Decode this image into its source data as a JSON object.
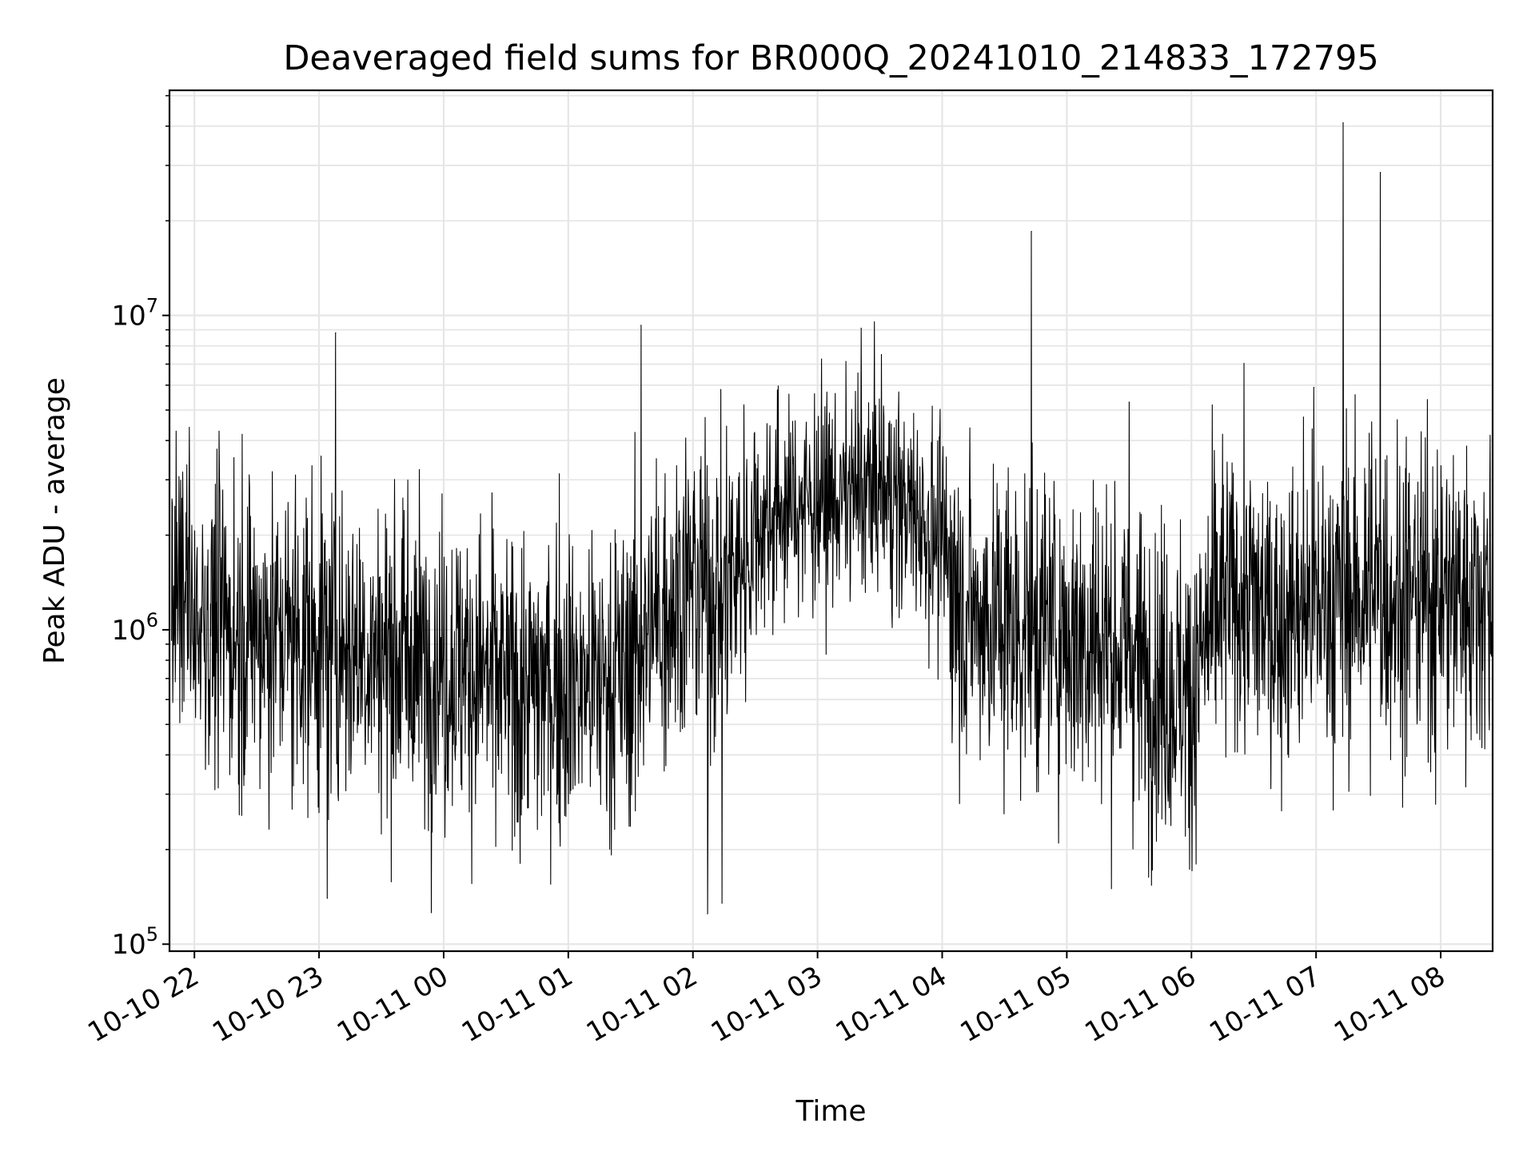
{
  "chart_data": {
    "type": "line",
    "title": "Deaveraged field sums for BR000Q_20241010_214833_172795",
    "xlabel": "Time",
    "ylabel": "Peak ADU - average",
    "x_ticks": [
      "10-10 22",
      "10-10 23",
      "10-11 00",
      "10-11 01",
      "10-11 02",
      "10-11 03",
      "10-11 04",
      "10-11 05",
      "10-11 06",
      "10-11 07",
      "10-11 08"
    ],
    "y_ticks": [
      {
        "base": "10",
        "exp": "5",
        "value": 100000
      },
      {
        "base": "10",
        "exp": "6",
        "value": 1000000
      },
      {
        "base": "10",
        "exp": "7",
        "value": 10000000
      }
    ],
    "xlim": [
      "2024-10-10 21:48",
      "2024-10-11 08:25"
    ],
    "ylim": [
      95000,
      52000000
    ],
    "yscale": "log",
    "grid": true,
    "line_color": "#000000",
    "grid_color": "#e6e6e6",
    "series": [
      {
        "values": [
          [
            "2024-10-10 21:50",
            1300000
          ],
          [
            "2024-10-10 22:00",
            1150000
          ],
          [
            "2024-10-10 22:10",
            1050000
          ],
          [
            "2024-10-10 22:20",
            1000000
          ],
          [
            "2024-10-10 22:30",
            1000000
          ],
          [
            "2024-10-10 22:40",
            980000
          ],
          [
            "2024-10-10 22:50",
            950000
          ],
          [
            "2024-10-10 23:00",
            930000
          ],
          [
            "2024-10-10 23:10",
            900000
          ],
          [
            "2024-10-10 23:20",
            880000
          ],
          [
            "2024-10-10 23:30",
            850000
          ],
          [
            "2024-10-10 23:40",
            830000
          ],
          [
            "2024-10-10 23:50",
            800000
          ],
          [
            "2024-10-11 00:00",
            780000
          ],
          [
            "2024-10-11 00:10",
            760000
          ],
          [
            "2024-10-11 00:20",
            720000
          ],
          [
            "2024-10-11 00:30",
            650000
          ],
          [
            "2024-10-11 00:40",
            640000
          ],
          [
            "2024-10-11 00:50",
            680000
          ],
          [
            "2024-10-11 01:00",
            700000
          ],
          [
            "2024-10-11 01:10",
            680000
          ],
          [
            "2024-10-11 01:20",
            700000
          ],
          [
            "2024-10-11 01:30",
            760000
          ],
          [
            "2024-10-11 01:40",
            1000000
          ],
          [
            "2024-10-11 01:50",
            1300000
          ],
          [
            "2024-10-11 02:00",
            1400000
          ],
          [
            "2024-10-11 02:10",
            1300000
          ],
          [
            "2024-10-11 02:20",
            1500000
          ],
          [
            "2024-10-11 02:30",
            2100000
          ],
          [
            "2024-10-11 02:40",
            2400000
          ],
          [
            "2024-10-11 02:50",
            2500000
          ],
          [
            "2024-10-11 03:00",
            2600000
          ],
          [
            "2024-10-11 03:10",
            2600000
          ],
          [
            "2024-10-11 03:20",
            2700000
          ],
          [
            "2024-10-11 03:30",
            2900000
          ],
          [
            "2024-10-11 03:40",
            2500000
          ],
          [
            "2024-10-11 03:50",
            2300000
          ],
          [
            "2024-10-11 04:00",
            1800000
          ],
          [
            "2024-10-11 04:10",
            1200000
          ],
          [
            "2024-10-11 04:20",
            1100000
          ],
          [
            "2024-10-11 04:30",
            1050000
          ],
          [
            "2024-10-11 04:40",
            1000000
          ],
          [
            "2024-10-11 04:50",
            1000000
          ],
          [
            "2024-10-11 05:00",
            960000
          ],
          [
            "2024-10-11 05:10",
            960000
          ],
          [
            "2024-10-11 05:20",
            920000
          ],
          [
            "2024-10-11 05:30",
            820000
          ],
          [
            "2024-10-11 05:40",
            720000
          ],
          [
            "2024-10-11 05:50",
            650000
          ],
          [
            "2024-10-11 06:00",
            620000
          ],
          [
            "2024-10-11 06:10",
            1050000
          ],
          [
            "2024-10-11 06:20",
            1300000
          ],
          [
            "2024-10-11 06:30",
            1200000
          ],
          [
            "2024-10-11 06:40",
            1050000
          ],
          [
            "2024-10-11 06:50",
            1150000
          ],
          [
            "2024-10-11 07:00",
            1200000
          ],
          [
            "2024-10-11 07:10",
            1250000
          ],
          [
            "2024-10-11 07:20",
            1300000
          ],
          [
            "2024-10-11 07:30",
            1350000
          ],
          [
            "2024-10-11 07:40",
            1300000
          ],
          [
            "2024-10-11 07:50",
            1250000
          ],
          [
            "2024-10-11 08:00",
            1300000
          ],
          [
            "2024-10-11 08:10",
            1300000
          ],
          [
            "2024-10-11 08:20",
            1300000
          ],
          [
            "2024-10-11 08:25",
            1300000
          ]
        ]
      }
    ],
    "notable_points": [
      {
        "x": "2024-10-11 04:43",
        "y": 18500000
      },
      {
        "x": "2024-10-11 05:30",
        "y": 5300000
      },
      {
        "x": "2024-10-11 06:59",
        "y": 5900000
      },
      {
        "x": "2024-10-11 07:13",
        "y": 41000000
      },
      {
        "x": "2024-10-11 07:31",
        "y": 28500000
      },
      {
        "x": "2024-10-11 03:21",
        "y": 9100000
      },
      {
        "x": "2024-10-11 01:35",
        "y": 9300000
      },
      {
        "x": "2024-10-10 23:08",
        "y": 8800000
      },
      {
        "x": "2024-10-11 02:07",
        "y": 125000
      },
      {
        "x": "2024-10-11 02:14",
        "y": 135000
      },
      {
        "x": "2024-10-10 23:04",
        "y": 140000
      }
    ]
  }
}
